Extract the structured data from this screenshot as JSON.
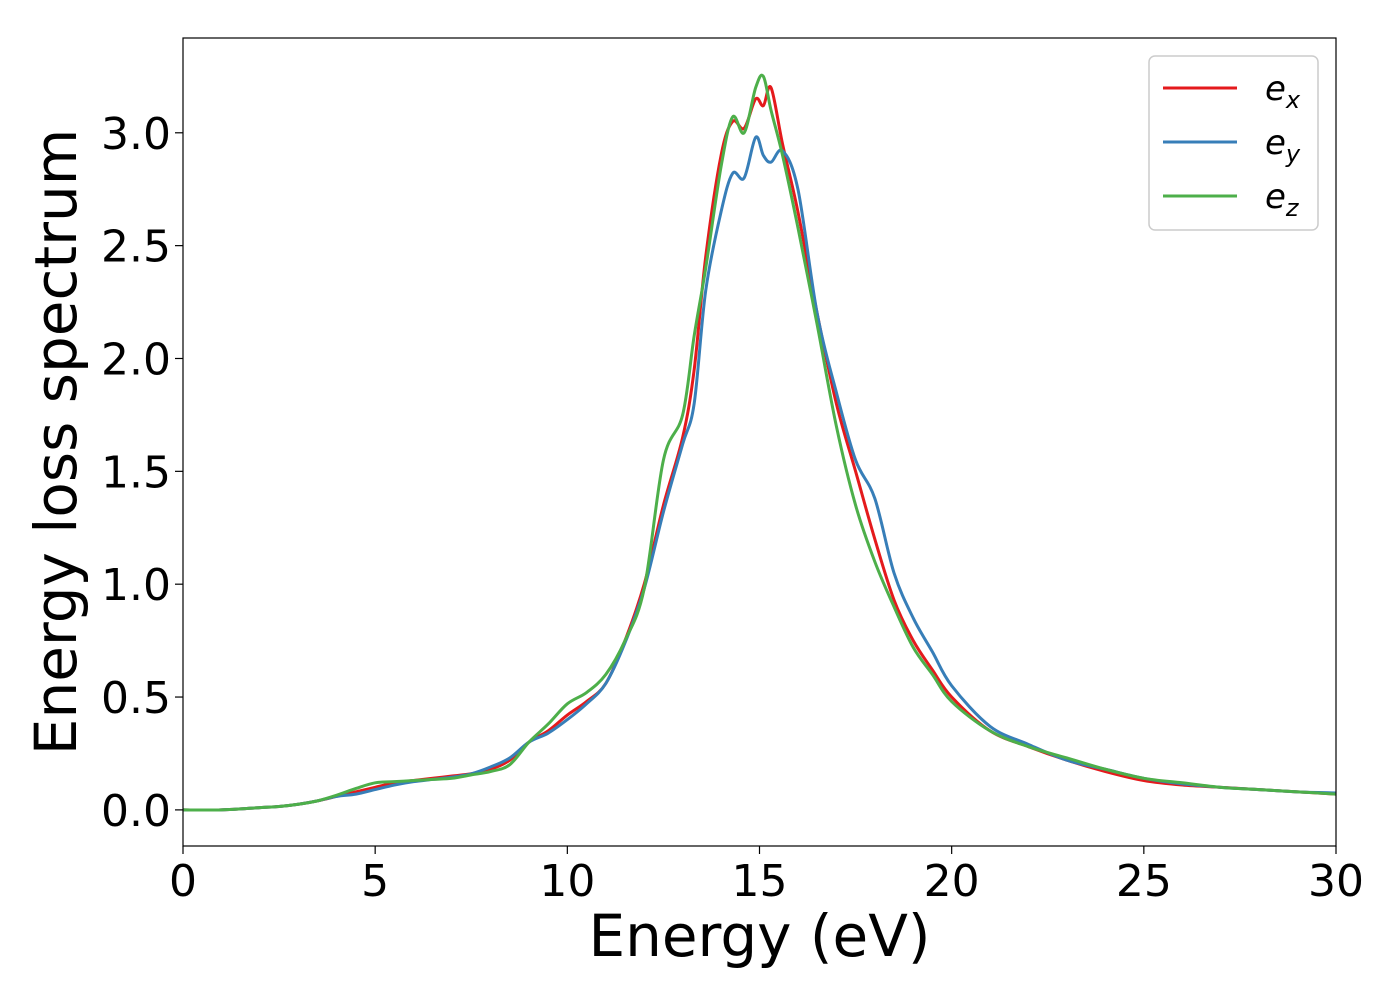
{
  "chart_data": {
    "type": "line",
    "title": "",
    "xlabel": "Energy (eV)",
    "ylabel": "Energy loss spectrum",
    "xlim": [
      0,
      30
    ],
    "ylim": [
      -0.16,
      3.42
    ],
    "xticks": [
      0,
      5,
      10,
      15,
      20,
      25,
      30
    ],
    "xtick_labels": [
      "0",
      "5",
      "10",
      "15",
      "20",
      "25",
      "30"
    ],
    "yticks": [
      0.0,
      0.5,
      1.0,
      1.5,
      2.0,
      2.5,
      3.0
    ],
    "ytick_labels": [
      "0.0",
      "0.5",
      "1.0",
      "1.5",
      "2.0",
      "2.5",
      "3.0"
    ],
    "grid": false,
    "legend_position": "top-right",
    "series": [
      {
        "name": "e_x",
        "label_main": "e",
        "label_sub": "x",
        "color": "#e41a1c",
        "x": [
          0,
          1,
          2,
          2.5,
          3,
          3.5,
          4,
          4.5,
          5,
          5.5,
          6,
          6.5,
          7,
          7.5,
          8,
          8.5,
          9,
          9.5,
          10,
          10.5,
          11,
          11.5,
          12,
          12.5,
          13,
          13.3,
          13.6,
          14,
          14.3,
          14.6,
          14.9,
          15.1,
          15.3,
          15.6,
          16,
          16.5,
          17,
          17.5,
          18,
          18.5,
          19,
          19.5,
          20,
          21,
          22,
          23,
          24,
          25,
          26,
          27,
          28,
          29,
          30
        ],
        "y": [
          0.0,
          0.0,
          0.01,
          0.015,
          0.025,
          0.04,
          0.06,
          0.08,
          0.1,
          0.12,
          0.13,
          0.14,
          0.15,
          0.16,
          0.18,
          0.22,
          0.3,
          0.35,
          0.42,
          0.48,
          0.56,
          0.75,
          1.0,
          1.35,
          1.65,
          1.95,
          2.45,
          2.9,
          3.05,
          3.02,
          3.15,
          3.12,
          3.2,
          2.95,
          2.65,
          2.2,
          1.8,
          1.5,
          1.2,
          0.93,
          0.75,
          0.62,
          0.5,
          0.35,
          0.28,
          0.22,
          0.17,
          0.13,
          0.11,
          0.1,
          0.09,
          0.08,
          0.07
        ]
      },
      {
        "name": "e_y",
        "label_main": "e",
        "label_sub": "y",
        "color": "#377eb8",
        "x": [
          0,
          1,
          2,
          2.5,
          3,
          3.5,
          4,
          4.5,
          5,
          5.5,
          6,
          6.5,
          7,
          7.5,
          8,
          8.5,
          9,
          9.5,
          10,
          10.5,
          11,
          11.5,
          12,
          12.5,
          13,
          13.3,
          13.6,
          14,
          14.3,
          14.6,
          14.9,
          15.1,
          15.3,
          15.6,
          16,
          16.5,
          17,
          17.5,
          18,
          18.5,
          19,
          19.5,
          20,
          21,
          22,
          23,
          24,
          25,
          26,
          27,
          28,
          29,
          30
        ],
        "y": [
          0.0,
          0.0,
          0.01,
          0.015,
          0.025,
          0.04,
          0.06,
          0.07,
          0.09,
          0.11,
          0.125,
          0.135,
          0.145,
          0.16,
          0.19,
          0.23,
          0.3,
          0.34,
          0.4,
          0.47,
          0.56,
          0.74,
          0.98,
          1.32,
          1.62,
          1.8,
          2.3,
          2.65,
          2.82,
          2.8,
          2.98,
          2.9,
          2.87,
          2.92,
          2.75,
          2.2,
          1.85,
          1.55,
          1.38,
          1.05,
          0.85,
          0.7,
          0.55,
          0.37,
          0.29,
          0.22,
          0.18,
          0.14,
          0.115,
          0.1,
          0.09,
          0.08,
          0.075
        ]
      },
      {
        "name": "e_z",
        "label_main": "e",
        "label_sub": "z",
        "color": "#4daf4a",
        "x": [
          0,
          1,
          2,
          2.5,
          3,
          3.5,
          4,
          4.5,
          5,
          5.5,
          6,
          6.5,
          7,
          7.5,
          8,
          8.5,
          9,
          9.5,
          10,
          10.5,
          11,
          11.5,
          12,
          12.5,
          13,
          13.3,
          13.6,
          14,
          14.3,
          14.6,
          14.9,
          15.1,
          15.3,
          15.6,
          16,
          16.5,
          17,
          17.5,
          18,
          18.5,
          19,
          19.5,
          20,
          21,
          22,
          23,
          24,
          25,
          26,
          27,
          28,
          29,
          30
        ],
        "y": [
          0.0,
          0.0,
          0.01,
          0.015,
          0.025,
          0.04,
          0.065,
          0.095,
          0.12,
          0.125,
          0.13,
          0.135,
          0.14,
          0.155,
          0.17,
          0.2,
          0.3,
          0.38,
          0.47,
          0.52,
          0.6,
          0.75,
          0.98,
          1.55,
          1.75,
          2.1,
          2.4,
          2.85,
          3.07,
          3.0,
          3.2,
          3.25,
          3.1,
          2.9,
          2.58,
          2.15,
          1.7,
          1.35,
          1.1,
          0.9,
          0.72,
          0.6,
          0.48,
          0.35,
          0.28,
          0.23,
          0.18,
          0.14,
          0.12,
          0.1,
          0.09,
          0.08,
          0.07
        ]
      }
    ]
  }
}
